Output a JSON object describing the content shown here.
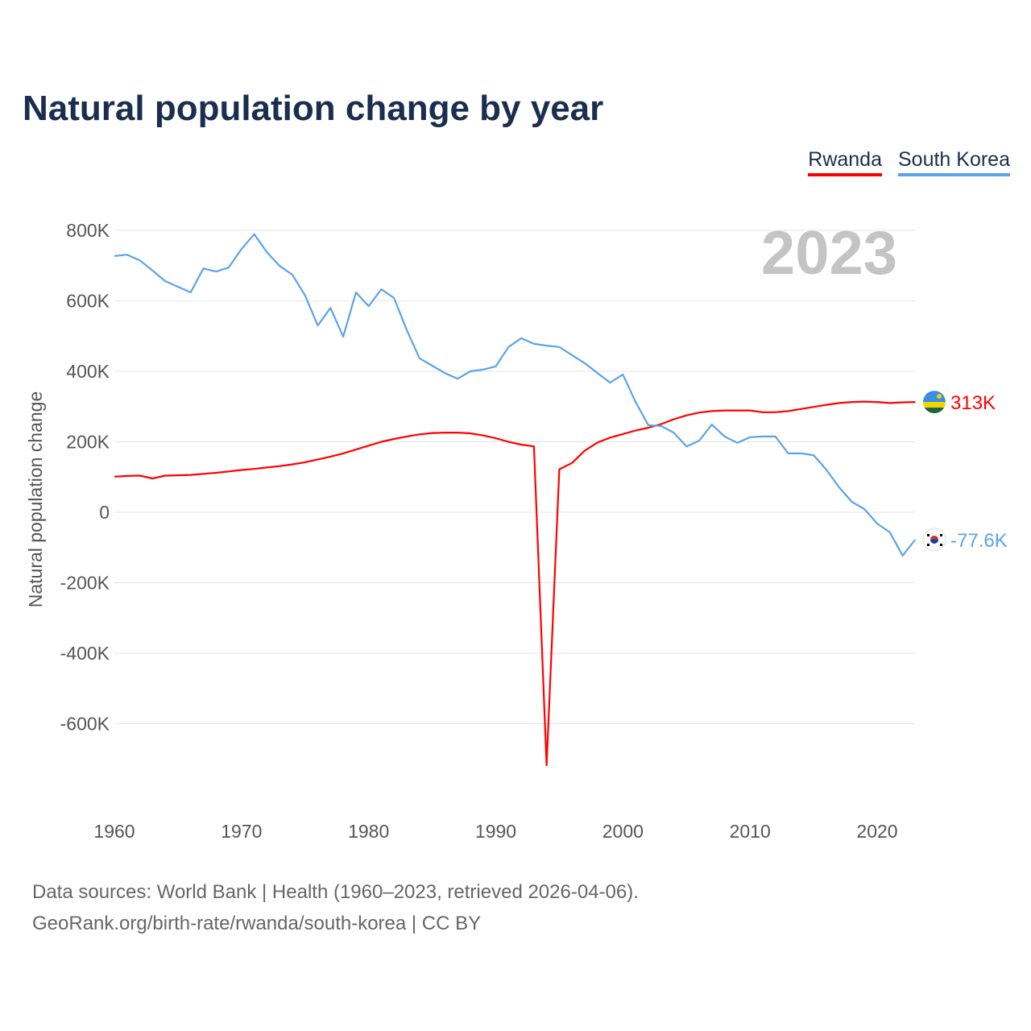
{
  "title": "Natural population change by year",
  "footer": {
    "line1": "Data sources: World Bank | Health (1960–2023, retrieved 2026-04-06).",
    "line2": "GeoRank.org/birth-rate/rwanda/south-korea | CC BY"
  },
  "chart_data": {
    "type": "line",
    "title": "Natural population change by year",
    "xlabel": "",
    "ylabel": "Natural population change",
    "year_label": "2023",
    "xlim": [
      1960,
      2023
    ],
    "ylim": [
      -800000,
      800000
    ],
    "xticks": [
      1960,
      1970,
      1980,
      1990,
      2000,
      2010,
      2020
    ],
    "yticks": [
      {
        "v": 800000,
        "label": "800K"
      },
      {
        "v": 600000,
        "label": "600K"
      },
      {
        "v": 400000,
        "label": "400K"
      },
      {
        "v": 200000,
        "label": "200K"
      },
      {
        "v": 0,
        "label": "0"
      },
      {
        "v": -200000,
        "label": "-200K"
      },
      {
        "v": -400000,
        "label": "-400K"
      },
      {
        "v": -600000,
        "label": "-600K"
      }
    ],
    "grid": true,
    "legend_position": "top-right",
    "x": [
      1960,
      1961,
      1962,
      1963,
      1964,
      1965,
      1966,
      1967,
      1968,
      1969,
      1970,
      1971,
      1972,
      1973,
      1974,
      1975,
      1976,
      1977,
      1978,
      1979,
      1980,
      1981,
      1982,
      1983,
      1984,
      1985,
      1986,
      1987,
      1988,
      1989,
      1990,
      1991,
      1992,
      1993,
      1994,
      1995,
      1996,
      1997,
      1998,
      1999,
      2000,
      2001,
      2002,
      2003,
      2004,
      2005,
      2006,
      2007,
      2008,
      2009,
      2010,
      2011,
      2012,
      2013,
      2014,
      2015,
      2016,
      2017,
      2018,
      2019,
      2020,
      2021,
      2022,
      2023
    ],
    "series": [
      {
        "name": "Rwanda",
        "color": "#ff0000",
        "end_label": "313K",
        "flag": "rwanda",
        "values": [
          101000,
          103000,
          104000,
          96000,
          104000,
          105000,
          106000,
          109000,
          112000,
          116000,
          120000,
          123000,
          127000,
          131000,
          136000,
          142000,
          150000,
          158000,
          167000,
          178000,
          189000,
          200000,
          208000,
          215000,
          221000,
          225000,
          226000,
          226000,
          224000,
          218000,
          210000,
          200000,
          192000,
          187000,
          -718000,
          122000,
          140000,
          175000,
          198000,
          212000,
          222000,
          232000,
          240000,
          250000,
          264000,
          275000,
          283000,
          287000,
          289000,
          289000,
          289000,
          284000,
          284000,
          287000,
          293000,
          299000,
          305000,
          310000,
          313000,
          314000,
          313000,
          310000,
          312000,
          313000
        ]
      },
      {
        "name": "South Korea",
        "color": "#5ba3e8",
        "end_label": "-77.6K",
        "flag": "south-korea",
        "values": [
          727000,
          731000,
          715000,
          686000,
          656000,
          640000,
          624000,
          692000,
          683000,
          695000,
          747000,
          789000,
          738000,
          699000,
          674000,
          615000,
          530000,
          580000,
          498000,
          624000,
          585000,
          633000,
          608000,
          517000,
          437000,
          416000,
          395000,
          379000,
          400000,
          405000,
          414000,
          469000,
          494000,
          478000,
          473000,
          469000,
          446000,
          423000,
          395000,
          368000,
          391000,
          313000,
          247000,
          245000,
          226000,
          187000,
          203000,
          249000,
          215000,
          197000,
          213000,
          215000,
          215000,
          167000,
          167000,
          162000,
          121000,
          71000,
          30000,
          9000,
          -32000,
          -57000,
          -123000,
          -77600
        ]
      }
    ]
  }
}
